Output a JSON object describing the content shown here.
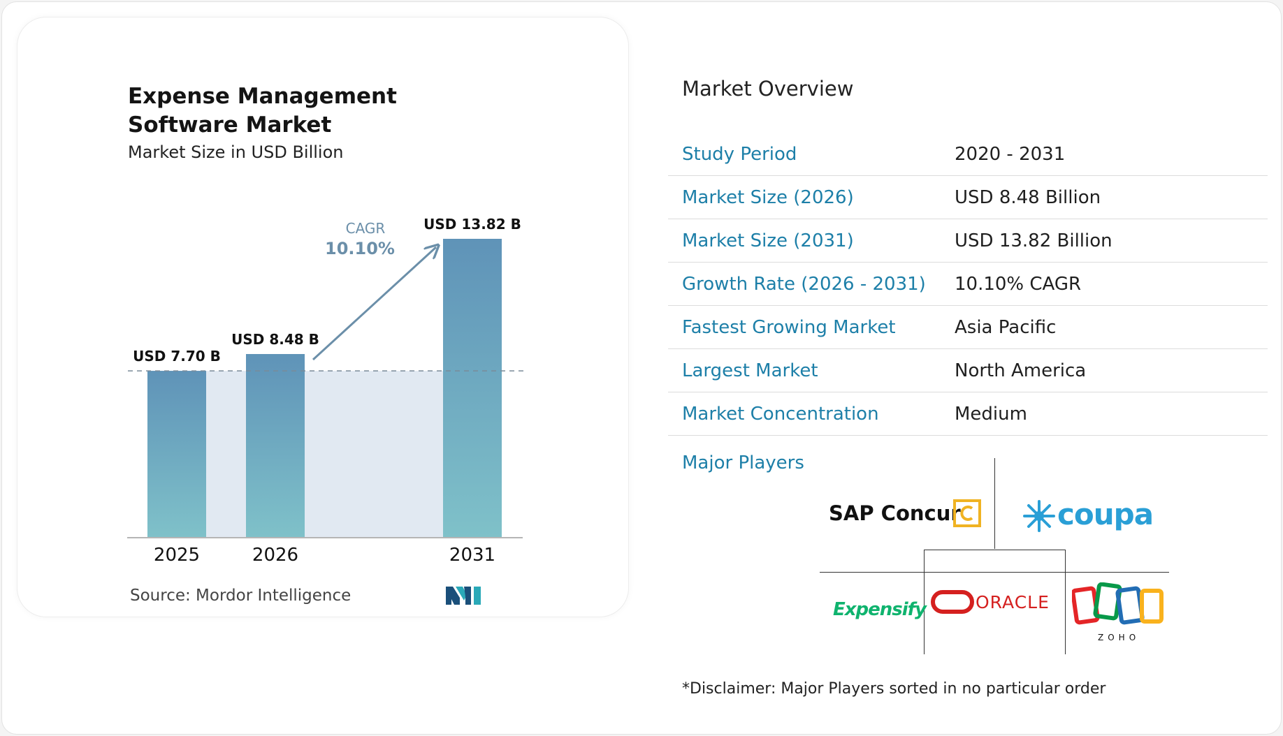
{
  "overview": {
    "title": "Market Overview",
    "rows": [
      {
        "label": "Study Period",
        "value": "2020 - 2031"
      },
      {
        "label": "Market Size (2026)",
        "value": "USD 8.48 Billion"
      },
      {
        "label": "Market Size (2031)",
        "value": "USD 13.82 Billion"
      },
      {
        "label": "Growth Rate (2026 - 2031)",
        "value": "10.10% CAGR"
      },
      {
        "label": "Fastest Growing Market",
        "value": "Asia Pacific"
      },
      {
        "label": "Largest Market",
        "value": "North America"
      },
      {
        "label": "Market Concentration",
        "value": "Medium"
      }
    ],
    "major_players_label": "Major Players",
    "players": [
      "SAP Concur",
      "coupa",
      "Expensify",
      "ORACLE",
      "ZOHO"
    ],
    "disclaimer": "*Disclaimer: Major Players sorted in no particular order"
  },
  "source": "Source:  Mordor Intelligence",
  "colors": {
    "bar_top": "#5f93b8",
    "bar_bottom": "#7fc1c9",
    "band": "#e1e9f2",
    "label_blue": "#1d7fa8",
    "cagr": "#6b8fa9"
  },
  "chart_data": {
    "type": "bar",
    "title": "Expense Management Software Market",
    "subtitle": "Market Size in USD Billion",
    "categories": [
      "2025",
      "2026",
      "2031"
    ],
    "values": [
      7.7,
      8.48,
      13.82
    ],
    "data_labels": [
      "USD 7.70 B",
      "USD 8.48 B",
      "USD 13.82 B"
    ],
    "ylim": [
      0,
      13.82
    ],
    "cagr_label": "CAGR",
    "cagr_value": "10.10%"
  }
}
